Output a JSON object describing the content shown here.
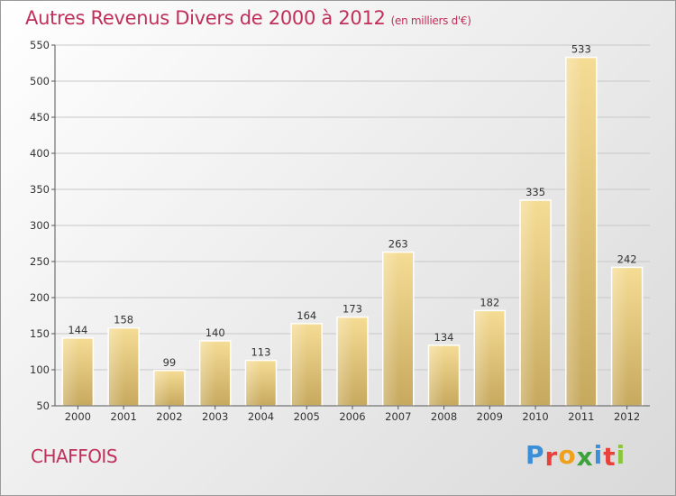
{
  "title": "Autres Revenus Divers de 2000 à 2012",
  "subtitle": "(en milliers d'€)",
  "commune": "CHAFFOIS",
  "logo": {
    "text": "Proxiti",
    "colors": [
      "#3a8fd8",
      "#e8413c",
      "#f0a11c",
      "#3ca23c",
      "#3a8fd8",
      "#e8413c",
      "#8cc63f"
    ]
  },
  "chart_data": {
    "type": "bar",
    "categories": [
      "2000",
      "2001",
      "2002",
      "2003",
      "2004",
      "2005",
      "2006",
      "2007",
      "2008",
      "2009",
      "2010",
      "2011",
      "2012"
    ],
    "values": [
      144,
      158,
      99,
      140,
      113,
      164,
      173,
      263,
      134,
      182,
      335,
      533,
      242
    ],
    "ylim": [
      50,
      550
    ],
    "yticks": [
      50,
      100,
      150,
      200,
      250,
      300,
      350,
      400,
      450,
      500,
      550
    ],
    "grid": true,
    "xlabel": "",
    "ylabel": "",
    "bar_color": "#e8cc80"
  }
}
